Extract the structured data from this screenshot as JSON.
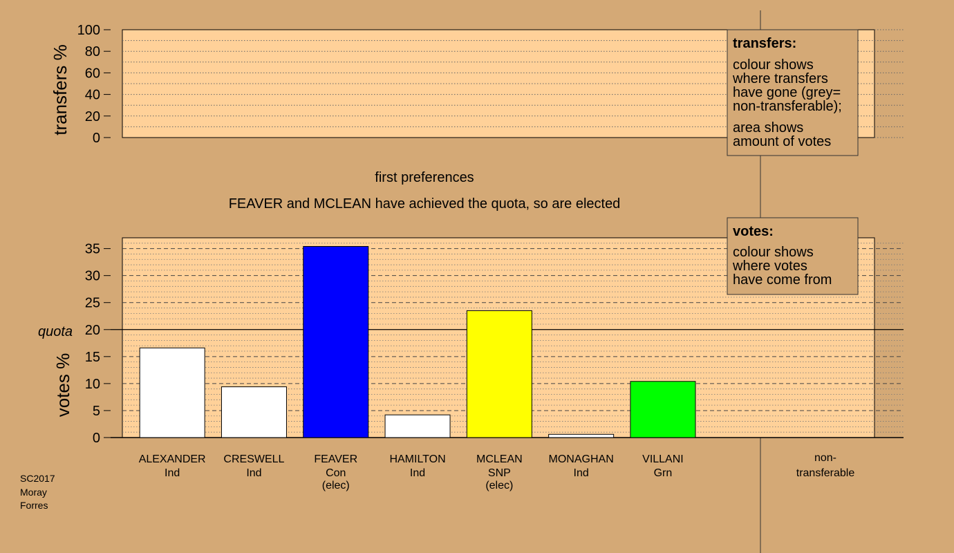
{
  "colors": {
    "background": "#d4a976",
    "plot_fill": "#ffd199",
    "grid": "#555555",
    "con": "#0000ff",
    "snp": "#ffff00",
    "grn": "#00ff00",
    "ind": "#ffffff"
  },
  "chart_data": [
    {
      "type": "bar",
      "panel": "transfers",
      "ylabel": "transfers %",
      "ylim": [
        0,
        100
      ],
      "yticks": [
        "0",
        "20",
        "40",
        "60",
        "80",
        "100"
      ],
      "values": []
    },
    {
      "type": "bar",
      "panel": "votes",
      "title": "first preferences",
      "subtitle": "FEAVER and MCLEAN have achieved the quota, so are elected",
      "ylabel": "votes %",
      "ylim": [
        0,
        37
      ],
      "yticks": [
        "0",
        "5",
        "10",
        "15",
        "20",
        "25",
        "30",
        "35"
      ],
      "quota": 20,
      "quota_label": "quota",
      "grid": true,
      "categories": [
        {
          "name": "ALEXANDER",
          "party": "Ind",
          "status": ""
        },
        {
          "name": "CRESWELL",
          "party": "Ind",
          "status": ""
        },
        {
          "name": "FEAVER",
          "party": "Con",
          "status": "(elec)"
        },
        {
          "name": "HAMILTON",
          "party": "Ind",
          "status": ""
        },
        {
          "name": "MCLEAN",
          "party": "SNP",
          "status": "(elec)"
        },
        {
          "name": "MONAGHAN",
          "party": "Ind",
          "status": ""
        },
        {
          "name": "VILLANI",
          "party": "Grn",
          "status": ""
        }
      ],
      "values": [
        16.6,
        9.4,
        35.4,
        4.2,
        23.5,
        0.6,
        10.4
      ],
      "bar_colors": [
        "#ffffff",
        "#ffffff",
        "#0000ff",
        "#ffffff",
        "#ffff00",
        "#ffffff",
        "#00ff00"
      ],
      "non_transferable_label": [
        "non-",
        "transferable"
      ]
    }
  ],
  "legend_transfers": {
    "title": "transfers:",
    "lines1": [
      "colour shows",
      "where transfers",
      "have gone (grey=",
      "non-transferable);"
    ],
    "lines2": [
      "area shows",
      "amount of votes"
    ]
  },
  "legend_votes": {
    "title": "votes:",
    "lines": [
      "colour shows",
      "where votes",
      "have come from"
    ]
  },
  "footer": [
    "SC2017",
    "Moray",
    "Forres"
  ]
}
